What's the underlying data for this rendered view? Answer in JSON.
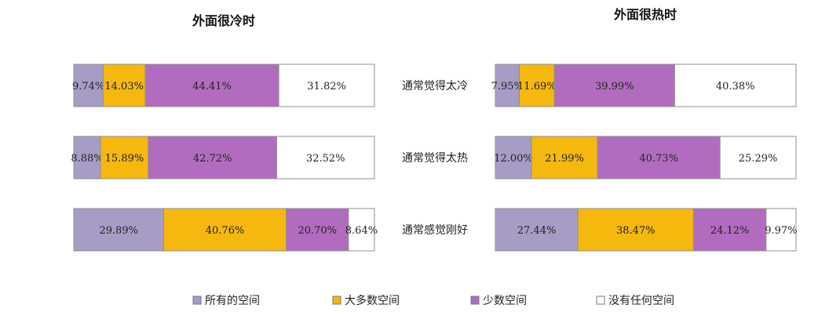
{
  "chart_data": {
    "type": "bar",
    "stacked": true,
    "normalized": true,
    "orientation": "horizontal",
    "unit": "%",
    "categories": [
      "通常觉得太冷",
      "通常觉得太热",
      "通常感觉刚好"
    ],
    "legend": {
      "placement": "bottom",
      "items": [
        {
          "label": "所有的空间",
          "color": "#a79cc6"
        },
        {
          "label": "大多数空间",
          "color": "#f5b80f"
        },
        {
          "label": "少数空间",
          "color": "#b26cbf"
        },
        {
          "label": "没有任何空间",
          "color": "#ffffff"
        }
      ]
    },
    "panels": [
      {
        "title": "外面很冷时",
        "values": [
          [
            "9.74%",
            "14.03%",
            "44.41%",
            "31.82%"
          ],
          [
            "8.88%",
            "15.89%",
            "42.72%",
            "32.52%"
          ],
          [
            "29.89%",
            "40.76%",
            "20.70%",
            "8.64%"
          ]
        ]
      },
      {
        "title": "外面很热时",
        "values": [
          [
            "7.95%",
            "11.69%",
            "39.99%",
            "40.38%"
          ],
          [
            "12.00%",
            "21.99%",
            "40.73%",
            "25.29%"
          ],
          [
            "27.44%",
            "38.47%",
            "24.12%",
            "9.97%"
          ]
        ]
      }
    ]
  }
}
